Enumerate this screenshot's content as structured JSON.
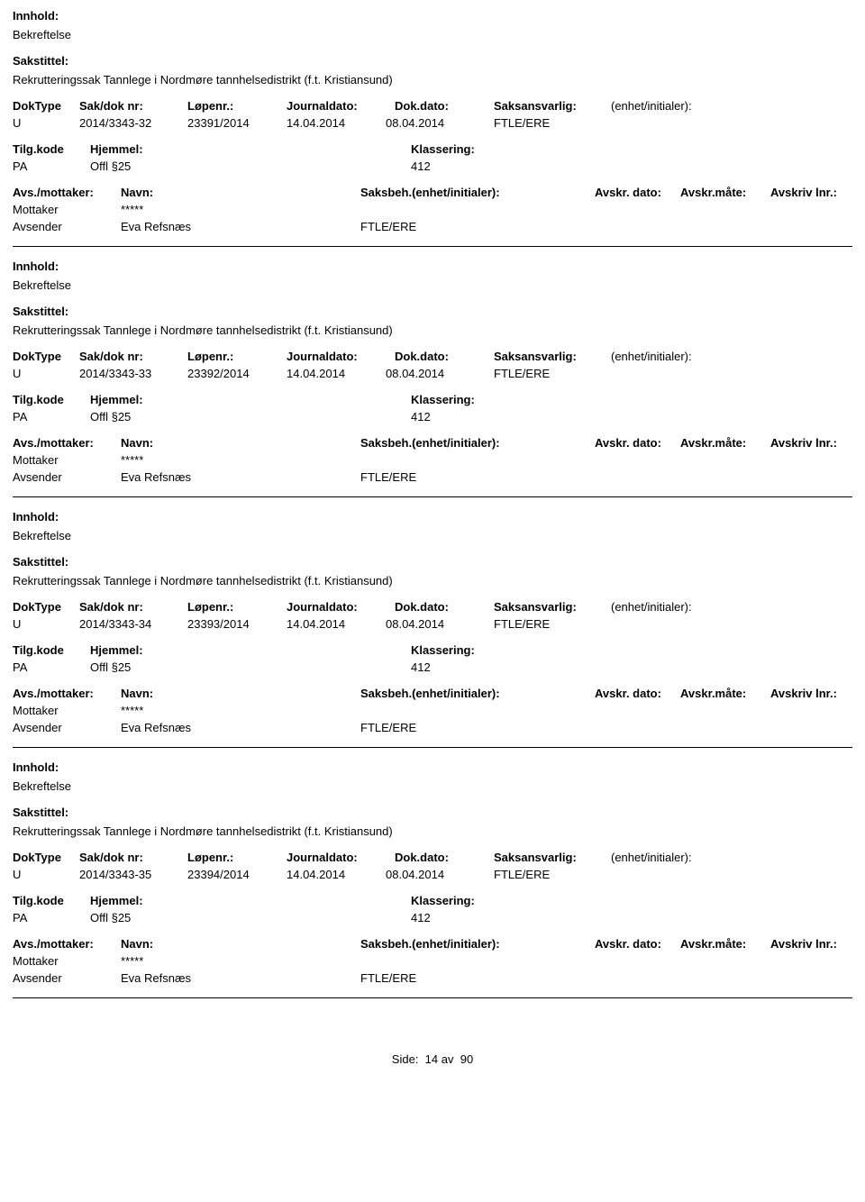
{
  "labels": {
    "innhold": "Innhold:",
    "sakstittel": "Sakstittel:",
    "doktype": "DokType",
    "sakdoknr": "Sak/dok nr:",
    "lopenr": "Løpenr.:",
    "journaldato": "Journaldato:",
    "dokdato": "Dok.dato:",
    "saksansvarlig": "Saksansvarlig:",
    "enhet_initialer": "(enhet/initialer):",
    "tilgkode": "Tilg.kode",
    "hjemmel": "Hjemmel:",
    "klassering": "Klassering:",
    "avs_mottaker": "Avs./mottaker:",
    "navn": "Navn:",
    "saksbeh": "Saksbeh.(enhet/initialer):",
    "avskr_dato": "Avskr. dato:",
    "avskr_maate": "Avskr.måte:",
    "avskriv_lnr": "Avskriv lnr.:",
    "mottaker": "Mottaker",
    "avsender": "Avsender"
  },
  "common": {
    "innhold_value": "Bekreftelse",
    "sakstittel_value": "Rekrutteringssak Tannlege i Nordmøre tannhelsedistrikt (f.t. Kristiansund)",
    "doktype": "U",
    "journaldato": "14.04.2014",
    "dokdato": "08.04.2014",
    "saksansvarlig": "FTLE/ERE",
    "tilgkode": "PA",
    "hjemmel": "Offl §25",
    "klassering": "412",
    "mottaker_navn": "*****",
    "avsender_navn": "Eva Refsnæs",
    "saksbeh_enhet": "FTLE/ERE"
  },
  "records": [
    {
      "sakdoknr": "2014/3343-32",
      "lopenr": "23391/2014"
    },
    {
      "sakdoknr": "2014/3343-33",
      "lopenr": "23392/2014"
    },
    {
      "sakdoknr": "2014/3343-34",
      "lopenr": "23393/2014"
    },
    {
      "sakdoknr": "2014/3343-35",
      "lopenr": "23394/2014"
    }
  ],
  "footer": {
    "side_label": "Side:",
    "page_current": "14",
    "av": "av",
    "page_total": "90"
  }
}
